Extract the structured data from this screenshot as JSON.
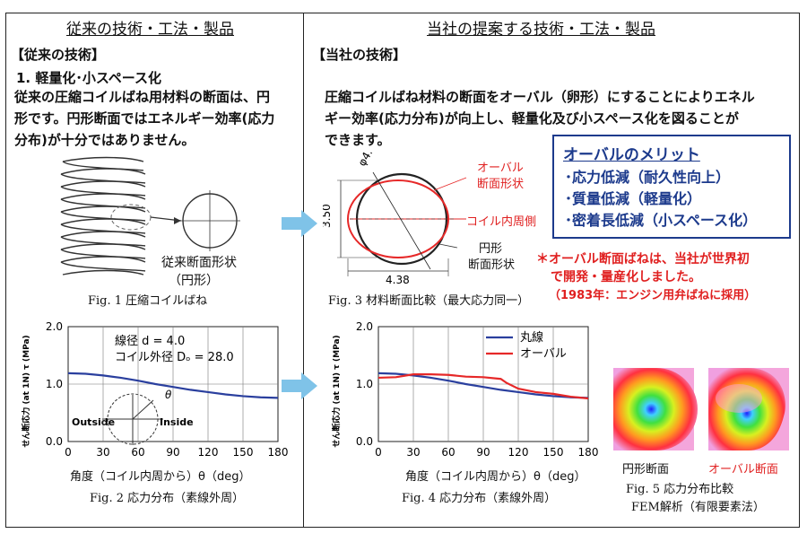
{
  "left": {
    "header": "従来の技術・工法・製品",
    "section": "【従来の技術】",
    "item": "1.  軽量化･小スペース化",
    "body": [
      "従来の圧縮コイルばね用材料の断面は、円",
      "形です。円形断面ではエネルギー効率(応力",
      "分布)が十分ではありません。"
    ],
    "fig1": {
      "label1": "従来断面形状",
      "label2": "（円形）",
      "caption": "Fig. 1  圧縮コイルばね"
    },
    "fig2": {
      "ylabel": "せん断応力 (at 1N) τ (MPa)",
      "xlabel": "角度（コイル内周から）θ（deg）",
      "ann1": "線径  d = 4.0",
      "ann2": "コイル外径  Dₒ = 28.0",
      "outside": "Outside",
      "inside": "Inside",
      "theta": "θ",
      "caption": "Fig. 2   応力分布（素線外周）"
    }
  },
  "right": {
    "header": "当社の提案する技術・工法・製品",
    "section": "【当社の技術】",
    "body": [
      "圧縮コイルばね材料の断面をオーバル（卵形）にすることによりエネル",
      "ギー効率(応力分布)が向上し、軽量化及び小スペース化を図ることが",
      "できます。"
    ],
    "fig3": {
      "dim_phi": "φ4.0",
      "dim_h": "3.50",
      "dim_w": "4.38",
      "oval_label1": "オーバル",
      "oval_label2": "断面形状",
      "inner_label": "コイル内周側",
      "circle_label1": "円形",
      "circle_label2": "断面形状",
      "caption": "Fig. 3   材料断面比較（最大応力同一）"
    },
    "merit": {
      "title": "オーバルのメリット",
      "items": [
        "･応力低減（耐久性向上）",
        "･質量低減（軽量化）",
        "･密着長低減（小スペース化）"
      ]
    },
    "note": [
      "＊オーバル断面ばねは、当社が世界初",
      "で開発・量産化しました。",
      "（1983年：エンジン用弁ばねに採用）"
    ],
    "fig4": {
      "ylabel": "せん断応力 (at 1N) τ (MPa)",
      "xlabel": "角度（コイル内周から）θ（deg）",
      "caption": "Fig. 4   応力分布（素線外周）"
    },
    "fig5": {
      "label_circle": "円形断面",
      "label_oval": "オーバル断面",
      "caption1": "Fig. 5  応力分布比較",
      "caption2": "FEM解析（有限要素法）"
    }
  },
  "colors": {
    "blue": "#2a3f9e",
    "red": "#e62828",
    "arrow": "#7fc3e8"
  },
  "chart_data": [
    {
      "type": "line",
      "xlabel": "角度（コイル内周から）θ（deg）",
      "ylabel": "せん断応力 (at 1N) τ (MPa)",
      "xlim": [
        0,
        180
      ],
      "ylim": [
        0,
        2.0
      ],
      "xticks": [
        0,
        30,
        60,
        90,
        120,
        150,
        180
      ],
      "yticks": [
        0.0,
        1.0,
        2.0
      ],
      "grid": true,
      "series": [
        {
          "color": "#2a3f9e",
          "x": [
            0,
            15,
            30,
            45,
            60,
            75,
            90,
            105,
            120,
            135,
            150,
            165,
            180
          ],
          "y": [
            1.19,
            1.18,
            1.15,
            1.11,
            1.06,
            1.0,
            0.95,
            0.9,
            0.86,
            0.82,
            0.79,
            0.77,
            0.76
          ]
        }
      ]
    },
    {
      "type": "line",
      "xlabel": "角度（コイル内周から）θ（deg）",
      "ylabel": "せん断応力 (at 1N) τ (MPa)",
      "xlim": [
        0,
        180
      ],
      "ylim": [
        0,
        2.0
      ],
      "xticks": [
        0,
        30,
        60,
        90,
        120,
        150,
        180
      ],
      "yticks": [
        0.0,
        1.0,
        2.0
      ],
      "grid": true,
      "legend": "top-left",
      "series": [
        {
          "name": "丸線",
          "color": "#2a3f9e",
          "x": [
            0,
            15,
            30,
            45,
            60,
            75,
            90,
            105,
            120,
            135,
            150,
            165,
            180
          ],
          "y": [
            1.19,
            1.18,
            1.15,
            1.11,
            1.06,
            1.0,
            0.95,
            0.9,
            0.86,
            0.82,
            0.79,
            0.77,
            0.76
          ]
        },
        {
          "name": "オーバル",
          "color": "#e62828",
          "x": [
            0,
            15,
            30,
            45,
            60,
            75,
            90,
            105,
            110,
            120,
            135,
            150,
            165,
            180
          ],
          "y": [
            1.11,
            1.12,
            1.17,
            1.17,
            1.16,
            1.13,
            1.12,
            1.09,
            1.02,
            0.92,
            0.86,
            0.83,
            0.78,
            0.75
          ]
        }
      ]
    }
  ]
}
